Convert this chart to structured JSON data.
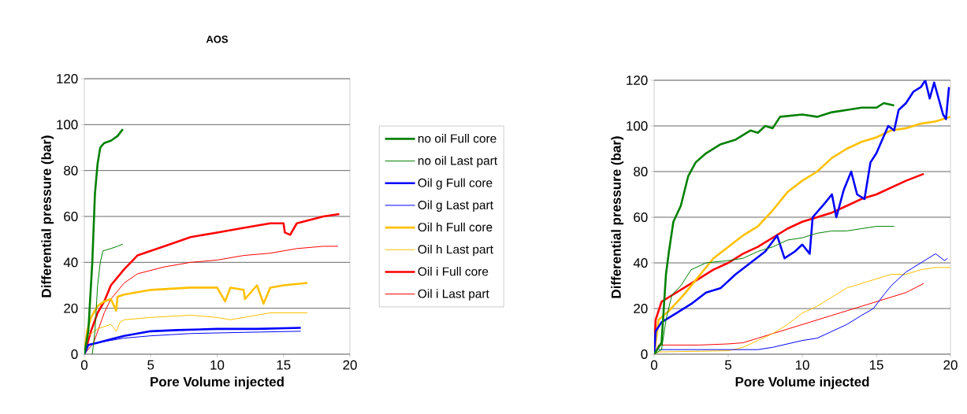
{
  "chart_data": [
    {
      "type": "line",
      "title": "AOS",
      "xlabel": "Pore Volume injected",
      "ylabel": "Differential pressure (bar)",
      "xlim": [
        0,
        20
      ],
      "ylim": [
        0,
        120
      ],
      "xticks": [
        0,
        5,
        10,
        15,
        20
      ],
      "yticks": [
        0,
        20,
        40,
        60,
        80,
        100,
        120
      ],
      "grid": "y",
      "legend": "right",
      "series": [
        {
          "name": "no oil Full core",
          "color": "#008000",
          "x": [
            0,
            0.3,
            0.6,
            0.8,
            1.0,
            1.2,
            1.5,
            2.0,
            2.5,
            2.9
          ],
          "values": [
            0,
            10,
            40,
            70,
            83,
            90,
            92,
            93,
            95,
            98
          ]
        },
        {
          "name": "no oil Last part",
          "color": "#008000",
          "x": [
            0.6,
            0.8,
            1.0,
            1.2,
            1.4,
            2,
            2.5,
            2.9
          ],
          "values": [
            0,
            10,
            30,
            40,
            45,
            46,
            47,
            48
          ]
        },
        {
          "name": "Oil g Full core",
          "color": "#0000ff",
          "x": [
            0,
            0.3,
            1,
            2,
            3,
            4,
            5,
            7,
            10,
            13,
            16.3
          ],
          "values": [
            0,
            4,
            5,
            6.5,
            8,
            9,
            10,
            10.5,
            11,
            11,
            11.5
          ]
        },
        {
          "name": "Oil g Last part",
          "color": "#0000ff",
          "x": [
            0,
            0.3,
            1,
            2,
            3,
            5,
            8,
            12,
            16.3
          ],
          "values": [
            0,
            4,
            5,
            6,
            7,
            8,
            9,
            9.5,
            10
          ]
        },
        {
          "name": "Oil h Full core",
          "color": "#ffc000",
          "x": [
            0,
            0.2,
            0.5,
            1,
            1.5,
            2,
            2.4,
            2.5,
            3,
            5,
            8,
            10,
            10.6,
            11,
            12,
            12.1,
            13,
            13.5,
            14,
            15,
            16.8
          ],
          "values": [
            0,
            10,
            16,
            21,
            23,
            24,
            19,
            25,
            26,
            28,
            29,
            29,
            23,
            29,
            28,
            24,
            30,
            22,
            29,
            30,
            31
          ]
        },
        {
          "name": "Oil h Last part",
          "color": "#ffc000",
          "x": [
            0,
            0.3,
            1,
            2,
            2.4,
            2.7,
            3,
            5,
            8,
            10,
            11,
            13,
            14,
            16.8
          ],
          "values": [
            0,
            8,
            11,
            13,
            10,
            14,
            15,
            16,
            17,
            16,
            15,
            17,
            18,
            18
          ]
        },
        {
          "name": "Oil i Full core",
          "color": "#ff0000",
          "x": [
            0,
            0.5,
            1,
            1.5,
            2,
            3,
            4,
            5,
            6,
            8,
            10,
            12,
            14,
            15,
            15.1,
            15.5,
            16,
            18,
            19.2
          ],
          "values": [
            0,
            10,
            18,
            23,
            30,
            37,
            43,
            45,
            47,
            51,
            53,
            55,
            57,
            57,
            53,
            52,
            57,
            60,
            61
          ]
        },
        {
          "name": "Oil i Last part",
          "color": "#ff0000",
          "x": [
            0,
            0.7,
            1.5,
            2,
            3,
            4,
            6,
            8,
            10,
            12,
            14,
            16,
            18,
            19.1
          ],
          "values": [
            0,
            5,
            18,
            24,
            31,
            35,
            38,
            40,
            41,
            43,
            44,
            46,
            47,
            47
          ]
        }
      ]
    },
    {
      "type": "line",
      "xlabel": "Pore Volume injected",
      "ylabel": "Differential pressure (bar)",
      "xlim": [
        0,
        20
      ],
      "ylim": [
        0,
        120
      ],
      "xticks": [
        0,
        5,
        10,
        15,
        20
      ],
      "yticks": [
        0,
        20,
        40,
        60,
        80,
        100,
        120
      ],
      "grid": "y",
      "series": [
        {
          "color": "#008000",
          "x": [
            0,
            0.5,
            0.8,
            1,
            1.3,
            1.8,
            2.3,
            2.8,
            3.5,
            4.5,
            5.5,
            6.5,
            7,
            7.5,
            8,
            8.5,
            10,
            11,
            12,
            13,
            14,
            15,
            15.5,
            16.2
          ],
          "values": [
            0,
            5,
            35,
            45,
            58,
            65,
            78,
            84,
            88,
            92,
            94,
            98,
            97,
            100,
            99,
            104,
            105,
            104,
            106,
            107,
            108,
            108,
            110,
            109
          ]
        },
        {
          "color": "#008000",
          "x": [
            0,
            0.5,
            0.8,
            1.2,
            1.8,
            2.5,
            3.5,
            5,
            6,
            7,
            8,
            9,
            10,
            11,
            12,
            13,
            14,
            15,
            16.2
          ],
          "values": [
            0,
            2,
            15,
            26,
            30,
            37,
            40,
            41,
            42,
            45,
            47,
            50,
            51,
            53,
            54,
            54,
            55,
            56,
            56
          ]
        },
        {
          "color": "#0000ff",
          "x": [
            0,
            0.1,
            0.5,
            1.5,
            2.5,
            3.5,
            4.5,
            5.5,
            6.5,
            7.5,
            8.3,
            8.8,
            9.5,
            10,
            10.5,
            10.7,
            11.5,
            12,
            12.3,
            12.8,
            13.3,
            13.7,
            14.2,
            14.6,
            15,
            15.8,
            16.2,
            16.5,
            17,
            17.5,
            18,
            18.3,
            18.6,
            18.9,
            19.5,
            19.7,
            19.9
          ],
          "values": [
            0,
            10,
            14,
            18,
            22,
            27,
            29,
            35,
            40,
            45,
            52,
            42,
            45,
            48,
            44,
            60,
            66,
            70,
            60,
            72,
            80,
            70,
            68,
            84,
            88,
            100,
            98,
            107,
            110,
            115,
            117,
            120,
            112,
            119,
            105,
            103,
            117
          ]
        },
        {
          "color": "#0000ff",
          "x": [
            0.3,
            5,
            7,
            8,
            10,
            11,
            12,
            13,
            14,
            14.8,
            15.5,
            16,
            17,
            18,
            18.5,
            19,
            19.6,
            19.8
          ],
          "values": [
            2,
            2,
            2,
            3,
            6,
            7,
            10,
            13,
            17,
            20,
            26,
            30,
            36,
            40,
            42,
            44,
            41,
            42
          ]
        },
        {
          "color": "#ffc000",
          "x": [
            0,
            0.3,
            1,
            2,
            3,
            4,
            5,
            6,
            7,
            8,
            9,
            10,
            11,
            12,
            13,
            14,
            15,
            16,
            17,
            18,
            19,
            20
          ],
          "values": [
            0,
            15,
            19,
            26,
            34,
            42,
            47,
            52,
            56,
            63,
            71,
            76,
            80,
            86,
            90,
            93,
            95,
            98,
            99,
            101,
            102,
            104
          ]
        },
        {
          "color": "#ffc000",
          "x": [
            0,
            0.3,
            5,
            6,
            7,
            8,
            9,
            10,
            11,
            12,
            13,
            14,
            15,
            16,
            17,
            18,
            19,
            20
          ],
          "values": [
            0,
            1,
            1.5,
            3,
            6,
            9,
            13,
            18,
            21,
            25,
            29,
            31,
            33,
            35,
            35,
            37,
            38,
            38
          ]
        },
        {
          "color": "#ff0000",
          "x": [
            0,
            0.1,
            0.5,
            1,
            2,
            3,
            4,
            5,
            6,
            7,
            8,
            9,
            10,
            11,
            12,
            13,
            14,
            15,
            16,
            17,
            18.2
          ],
          "values": [
            0,
            15,
            23,
            25,
            29,
            33,
            37,
            40,
            44,
            47,
            51,
            55,
            58,
            60,
            62,
            65,
            68,
            70,
            73,
            76,
            79
          ]
        },
        {
          "color": "#ff0000",
          "x": [
            0,
            0.3,
            1,
            3,
            5,
            6,
            7,
            8,
            9,
            10,
            11,
            12,
            13,
            14,
            15,
            16,
            17,
            18.2
          ],
          "values": [
            0,
            4,
            4,
            4,
            4.5,
            5,
            7,
            9,
            11,
            13,
            15,
            17,
            19,
            21,
            23,
            25,
            27,
            31
          ]
        }
      ]
    }
  ]
}
